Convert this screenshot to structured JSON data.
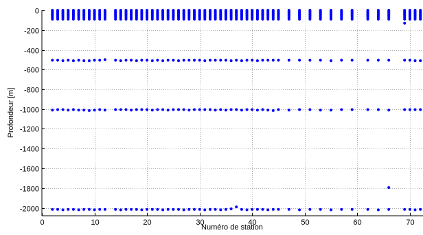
{
  "chart_data": {
    "type": "scatter",
    "xlabel": "Numéro de station",
    "ylabel": "Profondeur [m]",
    "xlim": [
      0,
      72.5
    ],
    "ylim": [
      -2080,
      0
    ],
    "xticks": [
      0,
      10,
      20,
      30,
      40,
      50,
      60,
      70
    ],
    "yticks": [
      0,
      -200,
      -400,
      -600,
      -800,
      -1000,
      -1200,
      -1400,
      -1600,
      -1800,
      -2000
    ],
    "grid": true,
    "marker_color": "#0000ff",
    "stations": [
      2,
      3,
      4,
      5,
      6,
      7,
      8,
      9,
      10,
      11,
      12,
      14,
      15,
      16,
      17,
      18,
      19,
      20,
      21,
      22,
      23,
      24,
      25,
      26,
      27,
      28,
      29,
      30,
      31,
      32,
      33,
      34,
      35,
      36,
      37,
      38,
      39,
      40,
      41,
      42,
      43,
      44,
      45,
      47,
      49,
      51,
      53,
      55,
      57,
      59,
      62,
      64,
      66,
      69,
      70,
      71,
      72
    ],
    "shallow_depths": [
      0,
      -10,
      -20,
      -30,
      -40,
      -50,
      -60,
      -75,
      -90
    ],
    "series": [
      {
        "x": [
          2,
          3,
          4,
          5,
          6,
          7,
          8,
          9,
          10,
          11,
          12,
          14,
          15,
          16,
          17,
          18,
          19,
          20,
          21,
          22,
          23,
          24,
          25,
          26,
          27,
          28,
          29,
          30,
          31,
          32,
          33,
          34,
          35,
          36,
          37,
          38,
          39,
          40,
          41,
          42,
          43,
          44,
          45,
          47,
          49,
          51,
          53,
          55,
          57,
          59,
          62,
          64,
          66,
          69,
          70,
          71,
          72
        ],
        "y": [
          -505,
          -505,
          -510,
          -505,
          -510,
          -505,
          -510,
          -510,
          -505,
          -505,
          -500,
          -505,
          -510,
          -505,
          -505,
          -510,
          -505,
          -505,
          -510,
          -505,
          -510,
          -505,
          -505,
          -510,
          -505,
          -505,
          -505,
          -505,
          -510,
          -505,
          -505,
          -505,
          -505,
          -510,
          -505,
          -510,
          -505,
          -505,
          -510,
          -505,
          -505,
          -505,
          -505,
          -505,
          -505,
          -505,
          -505,
          -510,
          -505,
          -505,
          -505,
          -505,
          -505,
          -505,
          -505,
          -510,
          -510
        ]
      },
      {
        "x": [
          2,
          3,
          4,
          5,
          6,
          7,
          8,
          9,
          10,
          11,
          12,
          14,
          15,
          16,
          17,
          18,
          19,
          20,
          21,
          22,
          23,
          24,
          25,
          26,
          27,
          28,
          29,
          30,
          31,
          32,
          33,
          34,
          35,
          36,
          37,
          38,
          39,
          40,
          41,
          42,
          43,
          44,
          45,
          47,
          49,
          51,
          53,
          55,
          57,
          59,
          62,
          64,
          66,
          69,
          70,
          71,
          72
        ],
        "y": [
          -1010,
          -1005,
          -1005,
          -1010,
          -1005,
          -1010,
          -1010,
          -1015,
          -1010,
          -1005,
          -1010,
          -1005,
          -1005,
          -1005,
          -1010,
          -1005,
          -1005,
          -1005,
          -1010,
          -1005,
          -1005,
          -1010,
          -1005,
          -1005,
          -1005,
          -1010,
          -1005,
          -1005,
          -1005,
          -1005,
          -1010,
          -1005,
          -1010,
          -1005,
          -1005,
          -1010,
          -1005,
          -1005,
          -1010,
          -1005,
          -1010,
          -1015,
          -1005,
          -1010,
          -1005,
          -1005,
          -1010,
          -1010,
          -1005,
          -1005,
          -1005,
          -1005,
          -1010,
          -1005,
          -1005,
          -1005,
          -1005
        ]
      },
      {
        "x": [
          2,
          3,
          4,
          5,
          6,
          7,
          8,
          9,
          10,
          11,
          12,
          14,
          15,
          16,
          17,
          18,
          19,
          20,
          21,
          22,
          23,
          24,
          25,
          26,
          27,
          28,
          29,
          30,
          31,
          32,
          33,
          34,
          35,
          36,
          37,
          38,
          39,
          40,
          41,
          42,
          43,
          44,
          45,
          47,
          49,
          51,
          53,
          55,
          57,
          59,
          62,
          64,
          66,
          69,
          70,
          71,
          72
        ],
        "y": [
          -2015,
          -2015,
          -2020,
          -2015,
          -2015,
          -2020,
          -2015,
          -2015,
          -2020,
          -2015,
          -2015,
          -2015,
          -2020,
          -2015,
          -2015,
          -2015,
          -2020,
          -2015,
          -2015,
          -2015,
          -2020,
          -2015,
          -2015,
          -2015,
          -2020,
          -2015,
          -2015,
          -2015,
          -2020,
          -2015,
          -2015,
          -2020,
          -2015,
          -2010,
          -1990,
          -2015,
          -2020,
          -2015,
          -2015,
          -2015,
          -2020,
          -2015,
          -2015,
          -2015,
          -2020,
          -2015,
          -2015,
          -2020,
          -2015,
          -2015,
          -2015,
          -2020,
          -2015,
          -2015,
          -2015,
          -2020,
          -2015
        ]
      },
      {
        "x": [
          66,
          69
        ],
        "y": [
          -1795,
          -130
        ]
      }
    ]
  }
}
